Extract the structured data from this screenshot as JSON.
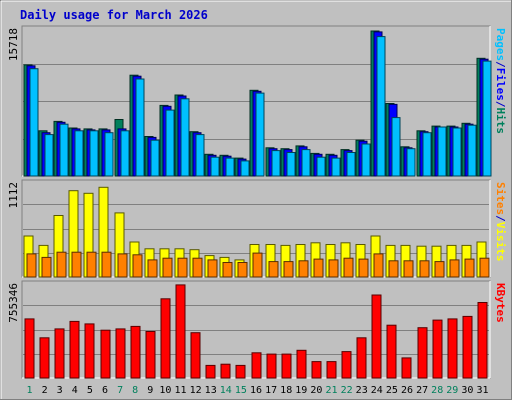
{
  "chart_data": {
    "type": "bar",
    "title": "Daily usage for March 2026",
    "categories": [
      "1",
      "2",
      "3",
      "4",
      "5",
      "6",
      "7",
      "8",
      "9",
      "10",
      "11",
      "12",
      "13",
      "14",
      "15",
      "16",
      "17",
      "18",
      "19",
      "20",
      "21",
      "22",
      "23",
      "24",
      "25",
      "26",
      "27",
      "28",
      "29",
      "30",
      "31"
    ],
    "weekend_days": [
      "1",
      "7",
      "8",
      "14",
      "15",
      "21",
      "22",
      "28",
      "29"
    ],
    "panels": [
      {
        "id": "hits-files-pages",
        "ymax_label": "15718",
        "ymax": 15718,
        "side_labels": [
          "Pages",
          "/",
          "Files",
          "/",
          "Hits"
        ],
        "series": [
          {
            "name": "Hits",
            "color": "#00805c",
            "values": [
              11800,
              4800,
              5800,
              5100,
              5000,
              5000,
              6000,
              10700,
              4200,
              7500,
              8600,
              4700,
              2300,
              2200,
              1900,
              9100,
              3000,
              2900,
              3200,
              2400,
              2300,
              2800,
              3800,
              15400,
              7700,
              3100,
              4800,
              5300,
              5300,
              5600,
              12500
            ]
          },
          {
            "name": "Files",
            "color": "#0000ff",
            "values": [
              11700,
              4600,
              5700,
              5000,
              4900,
              4900,
              5000,
              10600,
              4100,
              7400,
              8500,
              4600,
              2200,
              2100,
              1800,
              9000,
              2900,
              2800,
              3100,
              2300,
              2200,
              2700,
              3700,
              15300,
              7600,
              3000,
              4700,
              5200,
              5200,
              5500,
              12400
            ]
          },
          {
            "name": "Pages",
            "color": "#00c0ff",
            "values": [
              11400,
              4400,
              5500,
              4800,
              4800,
              4600,
              4800,
              10300,
              3800,
              7000,
              8200,
              4400,
              2000,
              1900,
              1600,
              8800,
              2700,
              2500,
              2800,
              2000,
              1900,
              2500,
              3400,
              14800,
              6200,
              2900,
              4600,
              5200,
              5100,
              5400,
              12200
            ]
          }
        ]
      },
      {
        "id": "visits-sites",
        "ymax_label": "1112",
        "ymax": 1112,
        "side_labels": [
          "Sites",
          "/",
          "Visits"
        ],
        "series": [
          {
            "name": "Visits",
            "color": "#ffff00",
            "values": [
              480,
              370,
              720,
              1010,
              980,
              1050,
              750,
              410,
              330,
              330,
              330,
              320,
              250,
              230,
              200,
              380,
              380,
              370,
              380,
              400,
              380,
              400,
              380,
              480,
              370,
              370,
              360,
              360,
              370,
              370,
              410
            ]
          },
          {
            "name": "Sites",
            "color": "#ff8000",
            "values": [
              270,
              230,
              290,
              290,
              290,
              290,
              270,
              260,
              200,
              220,
              220,
              220,
              200,
              170,
              170,
              280,
              180,
              180,
              190,
              210,
              200,
              220,
              210,
              270,
              190,
              190,
              190,
              180,
              200,
              210,
              220
            ]
          }
        ]
      },
      {
        "id": "kbytes",
        "ymax_label": "755346",
        "ymax": 755346,
        "side_labels": [
          "KBytes"
        ],
        "series": [
          {
            "name": "KBytes",
            "color": "#ff0000",
            "values": [
              470000,
              320000,
              390000,
              450000,
              430000,
              380000,
              390000,
              410000,
              370000,
              630000,
              740000,
              360000,
              100000,
              110000,
              100000,
              200000,
              190000,
              190000,
              220000,
              130000,
              130000,
              210000,
              320000,
              660000,
              420000,
              160000,
              400000,
              460000,
              470000,
              490000,
              600000
            ]
          }
        ]
      }
    ],
    "day_colors": {
      "weekday": "#000000",
      "weekend": "#00805c"
    }
  }
}
